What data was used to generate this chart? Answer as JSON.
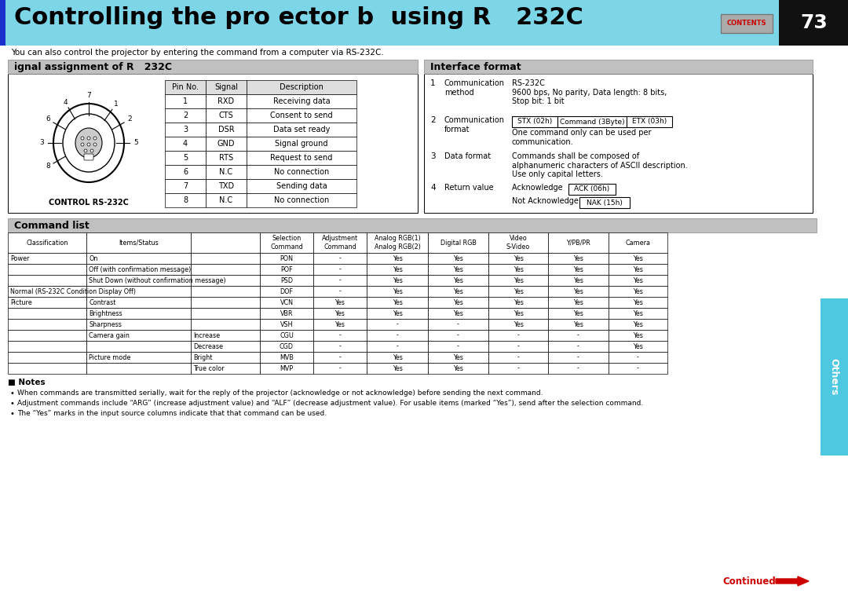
{
  "title": "Controlling the pro ector b  using R   232C",
  "page_num": "73",
  "bg_color": "#ffffff",
  "header_bg": "#7dd6e8",
  "header_blue_bar": "#1a2fcc",
  "subtitle": "You can also control the projector by entering the command from a computer via RS-232C.",
  "section1_title": "ignal assignment of R   232C",
  "section2_title": "Interface format",
  "section3_title": "Command list",
  "section_header_bg": "#c0c0c0",
  "pin_table_headers": [
    "Pin No.",
    "Signal",
    "Description"
  ],
  "pin_table_rows": [
    [
      "1",
      "RXD",
      "Receiving data"
    ],
    [
      "2",
      "CTS",
      "Consent to send"
    ],
    [
      "3",
      "DSR",
      "Data set ready"
    ],
    [
      "4",
      "GND",
      "Signal ground"
    ],
    [
      "5",
      "RTS",
      "Request to send"
    ],
    [
      "6",
      "N.C",
      "No connection"
    ],
    [
      "7",
      "TXD",
      "Sending data"
    ],
    [
      "8",
      "N.C",
      "No connection"
    ]
  ],
  "cmd_rows": [
    [
      "Power",
      "On",
      "",
      "PON",
      "-",
      "Yes",
      "Yes",
      "Yes",
      "Yes",
      "Yes"
    ],
    [
      "",
      "Off (with confirmation message)",
      "",
      "POF",
      "-",
      "Yes",
      "Yes",
      "Yes",
      "Yes",
      "Yes"
    ],
    [
      "",
      "Shut Down (without confirmation message)",
      "",
      "PSD",
      "-",
      "Yes",
      "Yes",
      "Yes",
      "Yes",
      "Yes"
    ],
    [
      "Normal (RS-232C Condition Display Off)",
      "",
      "",
      "DOF",
      "-",
      "Yes",
      "Yes",
      "Yes",
      "Yes",
      "Yes"
    ],
    [
      "Picture",
      "Contrast",
      "",
      "VCN",
      "Yes",
      "Yes",
      "Yes",
      "Yes",
      "Yes",
      "Yes"
    ],
    [
      "",
      "Brightness",
      "",
      "VBR",
      "Yes",
      "Yes",
      "Yes",
      "Yes",
      "Yes",
      "Yes"
    ],
    [
      "",
      "Sharpness",
      "",
      "VSH",
      "Yes",
      "-",
      "-",
      "Yes",
      "Yes",
      "Yes"
    ],
    [
      "",
      "Camera gain",
      "Increase",
      "CGU",
      "-",
      "-",
      "-",
      "-",
      "-",
      "Yes"
    ],
    [
      "",
      "",
      "Decrease",
      "CGD",
      "-",
      "-",
      "-",
      "-",
      "-",
      "Yes"
    ],
    [
      "",
      "Picture mode",
      "Bright",
      "MVB",
      "-",
      "Yes",
      "Yes",
      "-",
      "-",
      "-"
    ],
    [
      "",
      "",
      "True color",
      "MVP",
      "-",
      "Yes",
      "Yes",
      "-",
      "-",
      "-"
    ]
  ],
  "notes": [
    "When commands are transmitted serially, wait for the reply of the projector (acknowledge or not acknowledge) before sending the next command.",
    "Adjustment commands include “ARG” (increase adjustment value) and “ALF” (decrease adjustment value). For usable items (marked “Yes”), send after the selection command.",
    "The “Yes” marks in the input source columns indicate that that command can be used."
  ],
  "continued_color": "#cc0000",
  "others_color": "#4ec8e0",
  "contents_box_bg": "#aaaaaa",
  "contents_text_color": "#cc0000",
  "black_right": "#111111"
}
